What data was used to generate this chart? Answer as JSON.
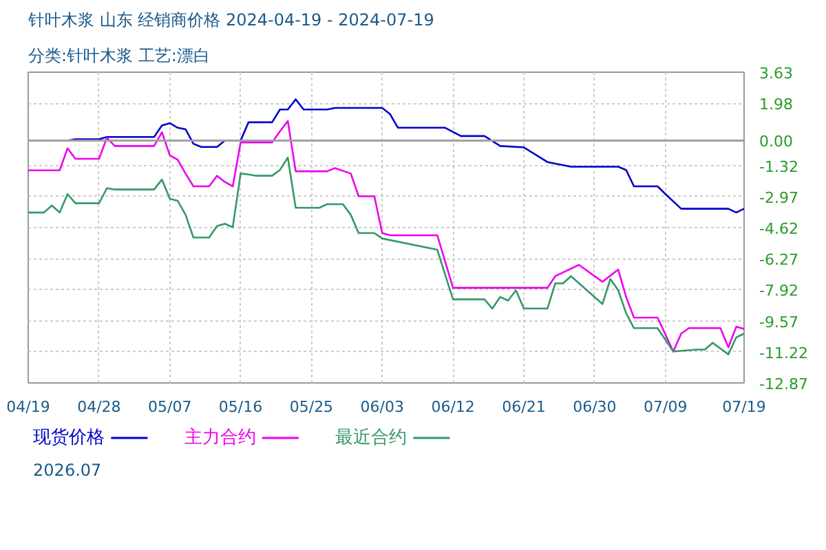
{
  "chart_data": {
    "type": "line",
    "title": "针叶木浆 山东 经销商价格 2024-04-19 - 2024-07-19",
    "subtitle": "分类:针叶木浆 工艺:漂白",
    "annotations": [
      "2026.07"
    ],
    "xlim": [
      "2024-04-19",
      "2024-07-19"
    ],
    "xticks": [
      {
        "value": "2024-04-19",
        "label": "04/19"
      },
      {
        "value": "2024-04-28",
        "label": "04/28"
      },
      {
        "value": "2024-05-07",
        "label": "05/07"
      },
      {
        "value": "2024-05-16",
        "label": "05/16"
      },
      {
        "value": "2024-05-25",
        "label": "05/25"
      },
      {
        "value": "2024-06-03",
        "label": "06/03"
      },
      {
        "value": "2024-06-12",
        "label": "06/12"
      },
      {
        "value": "2024-06-21",
        "label": "06/21"
      },
      {
        "value": "2024-06-30",
        "label": "06/30"
      },
      {
        "value": "2024-07-09",
        "label": "07/09"
      },
      {
        "value": "2024-07-19",
        "label": "07/19"
      }
    ],
    "ylim": [
      -12.87,
      3.63
    ],
    "yticks": [
      3.63,
      1.98,
      {
        "value": 0,
        "label": "0.00"
      },
      -1.32,
      -2.97,
      -4.62,
      -6.27,
      -7.92,
      -9.57,
      -11.22,
      -12.87
    ],
    "ref_lines": [
      {
        "axis": "y",
        "value": 0,
        "color": "#a0a0a0"
      }
    ],
    "grid": true,
    "legend": "bottom",
    "marker": "none",
    "line_style": "solid",
    "series": [
      {
        "name": "现货价格",
        "color": "#0000cc",
        "x": [
          "2024-04-19",
          "2024-04-24",
          "2024-04-25",
          "2024-04-28",
          "2024-04-29",
          "2024-05-05",
          "2024-05-06",
          "2024-05-07",
          "2024-05-08",
          "2024-05-09",
          "2024-05-10",
          "2024-05-11",
          "2024-05-13",
          "2024-05-14",
          "2024-05-16",
          "2024-05-17",
          "2024-05-20",
          "2024-05-21",
          "2024-05-22",
          "2024-05-23",
          "2024-05-24",
          "2024-05-27",
          "2024-05-28",
          "2024-06-03",
          "2024-06-04",
          "2024-06-05",
          "2024-06-11",
          "2024-06-13",
          "2024-06-16",
          "2024-06-18",
          "2024-06-21",
          "2024-06-24",
          "2024-06-27",
          "2024-07-03",
          "2024-07-04",
          "2024-07-05",
          "2024-07-08",
          "2024-07-09",
          "2024-07-11",
          "2024-07-17",
          "2024-07-18",
          "2024-07-19"
        ],
        "values": [
          0,
          0,
          0.07,
          0.07,
          0.19,
          0.19,
          0.8,
          0.92,
          0.68,
          0.6,
          -0.17,
          -0.34,
          -0.34,
          0,
          0,
          0.97,
          0.97,
          1.65,
          1.65,
          2.19,
          1.65,
          1.65,
          1.73,
          1.73,
          1.4,
          0.68,
          0.68,
          0.24,
          0.24,
          -0.29,
          -0.36,
          -1.14,
          -1.39,
          -1.39,
          -1.56,
          -2.43,
          -2.43,
          -2.84,
          -3.62,
          -3.62,
          -3.82,
          -3.62
        ]
      },
      {
        "name": "主力合约",
        "color": "#ee00ee",
        "x": [
          "2024-04-19",
          "2024-04-23",
          "2024-04-24",
          "2024-04-25",
          "2024-04-28",
          "2024-04-29",
          "2024-04-30",
          "2024-05-05",
          "2024-05-06",
          "2024-05-07",
          "2024-05-08",
          "2024-05-09",
          "2024-05-10",
          "2024-05-12",
          "2024-05-13",
          "2024-05-14",
          "2024-05-15",
          "2024-05-16",
          "2024-05-20",
          "2024-05-21",
          "2024-05-22",
          "2024-05-23",
          "2024-05-27",
          "2024-05-28",
          "2024-05-30",
          "2024-05-31",
          "2024-06-02",
          "2024-06-03",
          "2024-06-04",
          "2024-06-10",
          "2024-06-12",
          "2024-06-24",
          "2024-06-25",
          "2024-06-28",
          "2024-07-01",
          "2024-07-03",
          "2024-07-04",
          "2024-07-05",
          "2024-07-08",
          "2024-07-10",
          "2024-07-11",
          "2024-07-12",
          "2024-07-16",
          "2024-07-17",
          "2024-07-18",
          "2024-07-19"
        ],
        "values": [
          -1.58,
          -1.58,
          -0.41,
          -0.97,
          -0.97,
          0.15,
          -0.29,
          -0.29,
          0.44,
          -0.78,
          -1.02,
          -1.75,
          -2.43,
          -2.43,
          -1.87,
          -2.2,
          -2.43,
          -0.1,
          -0.1,
          0.49,
          1.04,
          -1.63,
          -1.63,
          -1.46,
          -1.75,
          -2.96,
          -2.96,
          -4.91,
          -5.03,
          -5.03,
          -7.82,
          -7.82,
          -7.2,
          -6.6,
          -7.5,
          -6.85,
          -8.3,
          -9.4,
          -9.4,
          -11.2,
          -10.25,
          -9.96,
          -9.96,
          -10.98,
          -9.89,
          -10.0
        ]
      },
      {
        "name": "最近合约",
        "color": "#339966",
        "x": [
          "2024-04-19",
          "2024-04-21",
          "2024-04-22",
          "2024-04-23",
          "2024-04-24",
          "2024-04-25",
          "2024-04-28",
          "2024-04-29",
          "2024-04-30",
          "2024-05-05",
          "2024-05-06",
          "2024-05-07",
          "2024-05-08",
          "2024-05-09",
          "2024-05-10",
          "2024-05-12",
          "2024-05-13",
          "2024-05-14",
          "2024-05-15",
          "2024-05-16",
          "2024-05-17",
          "2024-05-18",
          "2024-05-20",
          "2024-05-21",
          "2024-05-22",
          "2024-05-23",
          "2024-05-26",
          "2024-05-27",
          "2024-05-29",
          "2024-05-30",
          "2024-05-31",
          "2024-06-02",
          "2024-06-03",
          "2024-06-10",
          "2024-06-12",
          "2024-06-16",
          "2024-06-17",
          "2024-06-18",
          "2024-06-19",
          "2024-06-20",
          "2024-06-21",
          "2024-06-24",
          "2024-06-25",
          "2024-06-26",
          "2024-06-27",
          "2024-07-01",
          "2024-07-02",
          "2024-07-03",
          "2024-07-04",
          "2024-07-05",
          "2024-07-08",
          "2024-07-10",
          "2024-07-13",
          "2024-07-14",
          "2024-07-15",
          "2024-07-17",
          "2024-07-18",
          "2024-07-19"
        ],
        "values": [
          -3.82,
          -3.82,
          -3.45,
          -3.82,
          -2.84,
          -3.33,
          -3.33,
          -2.53,
          -2.6,
          -2.6,
          -2.07,
          -3.09,
          -3.2,
          -3.94,
          -5.15,
          -5.15,
          -4.54,
          -4.42,
          -4.6,
          -1.75,
          -1.8,
          -1.87,
          -1.87,
          -1.56,
          -0.9,
          -3.57,
          -3.57,
          -3.38,
          -3.38,
          -3.94,
          -4.91,
          -4.91,
          -5.2,
          -5.8,
          -8.43,
          -8.43,
          -8.92,
          -8.3,
          -8.5,
          -7.95,
          -8.92,
          -8.92,
          -7.58,
          -7.58,
          -7.2,
          -8.68,
          -7.35,
          -7.95,
          -9.16,
          -9.96,
          -9.96,
          -11.2,
          -11.1,
          -11.1,
          -10.74,
          -11.35,
          -10.45,
          -10.25
        ]
      }
    ]
  }
}
